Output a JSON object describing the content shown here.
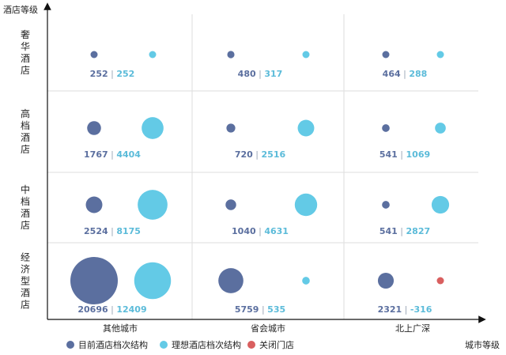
{
  "chart_data": {
    "type": "scatter",
    "y_axis_title": "酒店等级",
    "x_axis_title": "城市等级",
    "rows": [
      "奢华酒店",
      "高档酒店",
      "中档酒店",
      "经济型酒店"
    ],
    "columns": [
      "其他城市",
      "省会城市",
      "北上广深"
    ],
    "series": [
      {
        "name": "目前酒店档次结构",
        "color": "#5b6f9f"
      },
      {
        "name": "理想酒店档次结构",
        "color": "#63cae6"
      },
      {
        "name": "关闭门店",
        "color": "#d95f5f"
      }
    ],
    "cells": [
      {
        "row": 0,
        "col": 0,
        "current": 252,
        "ideal": 252
      },
      {
        "row": 0,
        "col": 1,
        "current": 480,
        "ideal": 317
      },
      {
        "row": 0,
        "col": 2,
        "current": 464,
        "ideal": 288
      },
      {
        "row": 1,
        "col": 0,
        "current": 1767,
        "ideal": 4404
      },
      {
        "row": 1,
        "col": 1,
        "current": 720,
        "ideal": 2516
      },
      {
        "row": 1,
        "col": 2,
        "current": 541,
        "ideal": 1069
      },
      {
        "row": 2,
        "col": 0,
        "current": 2524,
        "ideal": 8175
      },
      {
        "row": 2,
        "col": 1,
        "current": 1040,
        "ideal": 4631
      },
      {
        "row": 2,
        "col": 2,
        "current": 541,
        "ideal": 2827
      },
      {
        "row": 3,
        "col": 0,
        "current": 20696,
        "ideal": 12409
      },
      {
        "row": 3,
        "col": 1,
        "current": 5759,
        "ideal": 535
      },
      {
        "row": 3,
        "col": 2,
        "current": 2321,
        "ideal": -316
      }
    ],
    "separator": "|",
    "grid": true,
    "legend_position": "bottom-left"
  }
}
